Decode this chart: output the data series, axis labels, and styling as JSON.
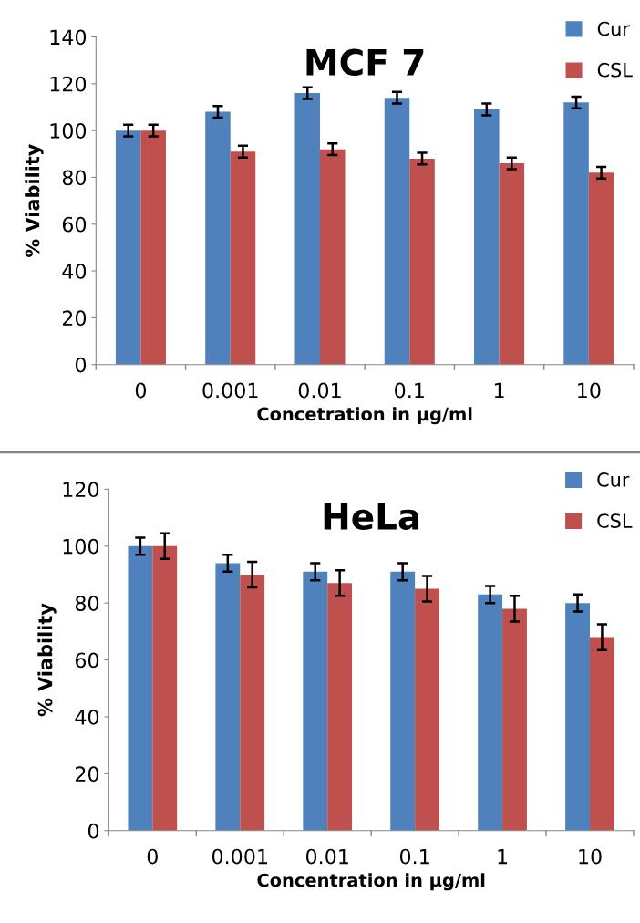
{
  "chart_data": [
    {
      "type": "bar",
      "title": "MCF 7",
      "xlabel": "Concetration in µg/ml",
      "ylabel": "% Viability",
      "categories": [
        "0",
        "0.001",
        "0.01",
        "0.1",
        "1",
        "10"
      ],
      "ylim": [
        0,
        140
      ],
      "yticks": [
        0,
        20,
        40,
        60,
        80,
        100,
        120,
        140
      ],
      "legend": "top right",
      "grid": false,
      "series": [
        {
          "name": "Cur",
          "color": "#4f81bd",
          "values": [
            100,
            108,
            116,
            114,
            109,
            112
          ],
          "errors": [
            2.5,
            2.5,
            2.5,
            2.5,
            2.5,
            2.5
          ]
        },
        {
          "name": "CSL",
          "color": "#c0504d",
          "values": [
            100,
            91,
            92,
            88,
            86,
            82
          ],
          "errors": [
            2.5,
            2.5,
            2.5,
            2.5,
            2.5,
            2.5
          ]
        }
      ]
    },
    {
      "type": "bar",
      "title": "HeLa",
      "xlabel": "Concentration in µg/ml",
      "ylabel": "% Viability",
      "categories": [
        "0",
        "0.001",
        "0.01",
        "0.1",
        "1",
        "10"
      ],
      "ylim": [
        0,
        120
      ],
      "yticks": [
        0,
        20,
        40,
        60,
        80,
        100,
        120
      ],
      "legend": "top right",
      "grid": false,
      "series": [
        {
          "name": "Cur",
          "color": "#4f81bd",
          "values": [
            100,
            94,
            91,
            91,
            83,
            80
          ],
          "errors": [
            3,
            3,
            3,
            3,
            3,
            3
          ]
        },
        {
          "name": "CSL",
          "color": "#c0504d",
          "values": [
            100,
            90,
            87,
            85,
            78,
            68
          ],
          "errors": [
            4.5,
            4.5,
            4.5,
            4.5,
            4.5,
            4.5
          ]
        }
      ]
    }
  ]
}
